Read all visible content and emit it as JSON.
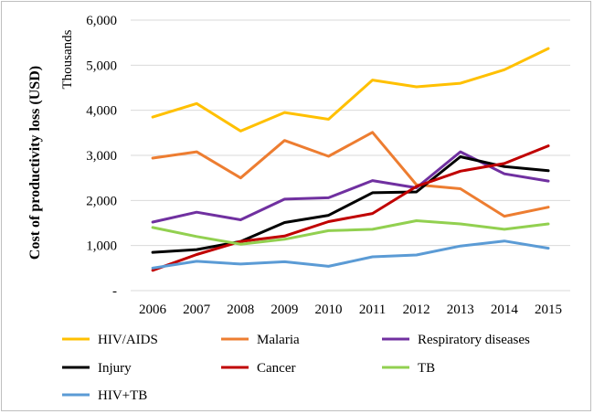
{
  "chart_data": {
    "type": "line",
    "title": "",
    "xlabel": "",
    "ylabel": "Cost of productivity loss (USD)",
    "y_units": "Thousands",
    "ylim": [
      0,
      6000
    ],
    "x": [
      "2006",
      "2007",
      "2008",
      "2009",
      "2010",
      "2011",
      "2012",
      "2013",
      "2014",
      "2015"
    ],
    "y_ticks": [
      {
        "value": 0,
        "label": "-"
      },
      {
        "value": 1000,
        "label": "1,000"
      },
      {
        "value": 2000,
        "label": "2,000"
      },
      {
        "value": 3000,
        "label": "3,000"
      },
      {
        "value": 4000,
        "label": "4,000"
      },
      {
        "value": 5000,
        "label": "5,000"
      },
      {
        "value": 6000,
        "label": "6,000"
      }
    ],
    "grid": true,
    "legend_position": "bottom",
    "series": [
      {
        "name": "HIV/AIDS",
        "color": "#FFC000",
        "values": [
          3850,
          4150,
          3540,
          3950,
          3800,
          4670,
          4520,
          4600,
          4900,
          5370
        ]
      },
      {
        "name": "Malaria",
        "color": "#ED7D31",
        "values": [
          2940,
          3080,
          2500,
          3330,
          2980,
          3510,
          2350,
          2260,
          1650,
          1850
        ]
      },
      {
        "name": "Respiratory diseases",
        "color": "#7030A0",
        "values": [
          1520,
          1740,
          1570,
          2030,
          2060,
          2440,
          2280,
          3080,
          2590,
          2430
        ]
      },
      {
        "name": "Injury",
        "color": "#000000",
        "values": [
          850,
          910,
          1090,
          1510,
          1670,
          2170,
          2190,
          2970,
          2750,
          2660
        ]
      },
      {
        "name": "Cancer",
        "color": "#C00000",
        "values": [
          450,
          800,
          1090,
          1210,
          1530,
          1710,
          2310,
          2650,
          2820,
          3210
        ]
      },
      {
        "name": "TB",
        "color": "#92D050",
        "values": [
          1400,
          1200,
          1030,
          1140,
          1330,
          1360,
          1550,
          1480,
          1360,
          1480
        ]
      },
      {
        "name": "HIV+TB",
        "color": "#5B9BD5",
        "values": [
          500,
          650,
          590,
          640,
          540,
          750,
          790,
          990,
          1100,
          940
        ]
      }
    ]
  }
}
